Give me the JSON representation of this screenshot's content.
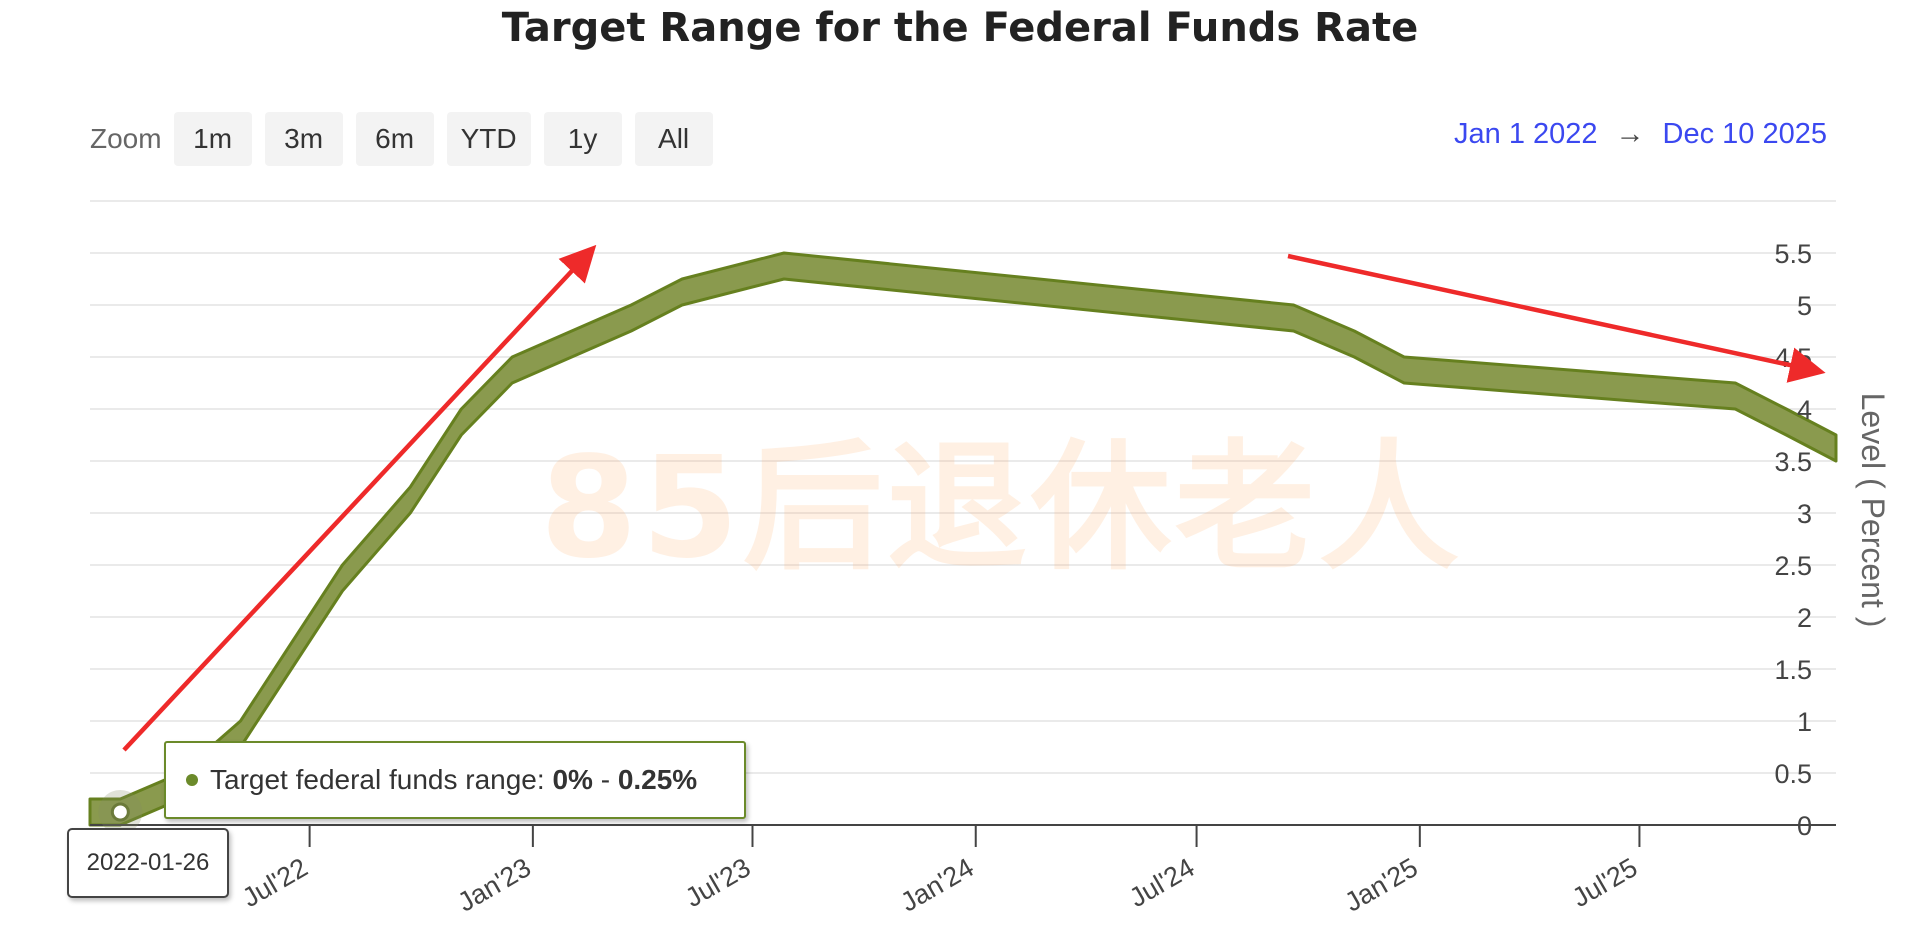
{
  "title": "Target Range for the Federal Funds Rate",
  "zoom": {
    "label": "Zoom",
    "buttons": [
      "1m",
      "3m",
      "6m",
      "YTD",
      "1y",
      "All"
    ]
  },
  "range": {
    "from": "Jan 1 2022",
    "arrow": "→",
    "to": "Dec 10 2025"
  },
  "tooltip": {
    "series": "Target federal funds range:",
    "low": "0%",
    "sep": "-",
    "high": "0.25%",
    "date": "2022-01-26"
  },
  "watermark": "85后退休老人",
  "colors": {
    "band_fill": "#8a9a4e",
    "band_stroke": "#66801f",
    "arrow": "#ee2a2a",
    "range_text": "#3b48f0"
  },
  "chart_data": {
    "type": "area",
    "subtype": "range-band",
    "ylabel": "Level ( Percent )",
    "ylim": [
      0,
      6
    ],
    "yticks": [
      0,
      0.5,
      1,
      1.5,
      2,
      2.5,
      3,
      3.5,
      4,
      4.5,
      5,
      5.5
    ],
    "ytick_labels": [
      "0",
      "0.5",
      "1",
      "1.5",
      "2",
      "2.5",
      "3",
      "3.5",
      "4",
      "4.5",
      "5",
      "5.5"
    ],
    "xlim": [
      "2022-01-01",
      "2025-12-10"
    ],
    "xticks": [
      "2022-07-01",
      "2023-01-01",
      "2023-07-01",
      "2024-01-01",
      "2024-07-01",
      "2025-01-01",
      "2025-07-01"
    ],
    "xtick_labels": [
      "Jul'22",
      "Jan'23",
      "Jul'23",
      "Jan'24",
      "Jul'24",
      "Jan'25",
      "Jul'25"
    ],
    "grid": true,
    "y_axis_side": "right",
    "series": [
      {
        "name": "Target federal funds range",
        "x": [
          "2022-01-01",
          "2022-01-26",
          "2022-03-17",
          "2022-05-05",
          "2022-06-16",
          "2022-07-28",
          "2022-09-22",
          "2022-11-03",
          "2022-12-15",
          "2023-02-02",
          "2023-03-23",
          "2023-05-04",
          "2023-07-27",
          "2024-09-19",
          "2024-11-08",
          "2024-12-19",
          "2025-09-18",
          "2025-10-30",
          "2025-12-10"
        ],
        "low": [
          0,
          0,
          0.25,
          0.75,
          1.5,
          2.25,
          3,
          3.75,
          4.25,
          4.5,
          4.75,
          5,
          5.25,
          4.75,
          4.5,
          4.25,
          4,
          3.75,
          3.5
        ],
        "high": [
          0.25,
          0.25,
          0.5,
          1,
          1.75,
          2.5,
          3.25,
          4,
          4.5,
          4.75,
          5,
          5.25,
          5.5,
          5,
          4.75,
          4.5,
          4.25,
          4,
          3.75
        ]
      }
    ],
    "highlight": {
      "x": "2022-01-26",
      "low": 0,
      "high": 0.25
    }
  }
}
